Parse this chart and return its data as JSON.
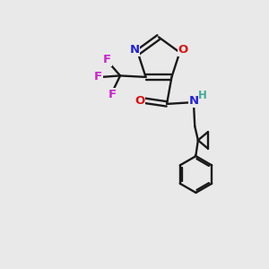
{
  "background_color": "#e9e9e9",
  "bond_color": "#1a1a1a",
  "N_color": "#2222dd",
  "O_color": "#dd1111",
  "F_color": "#cc22cc",
  "H_color": "#44aa99",
  "figsize": [
    3.0,
    3.0
  ],
  "dpi": 100,
  "xlim": [
    0,
    10
  ],
  "ylim": [
    0,
    10
  ]
}
